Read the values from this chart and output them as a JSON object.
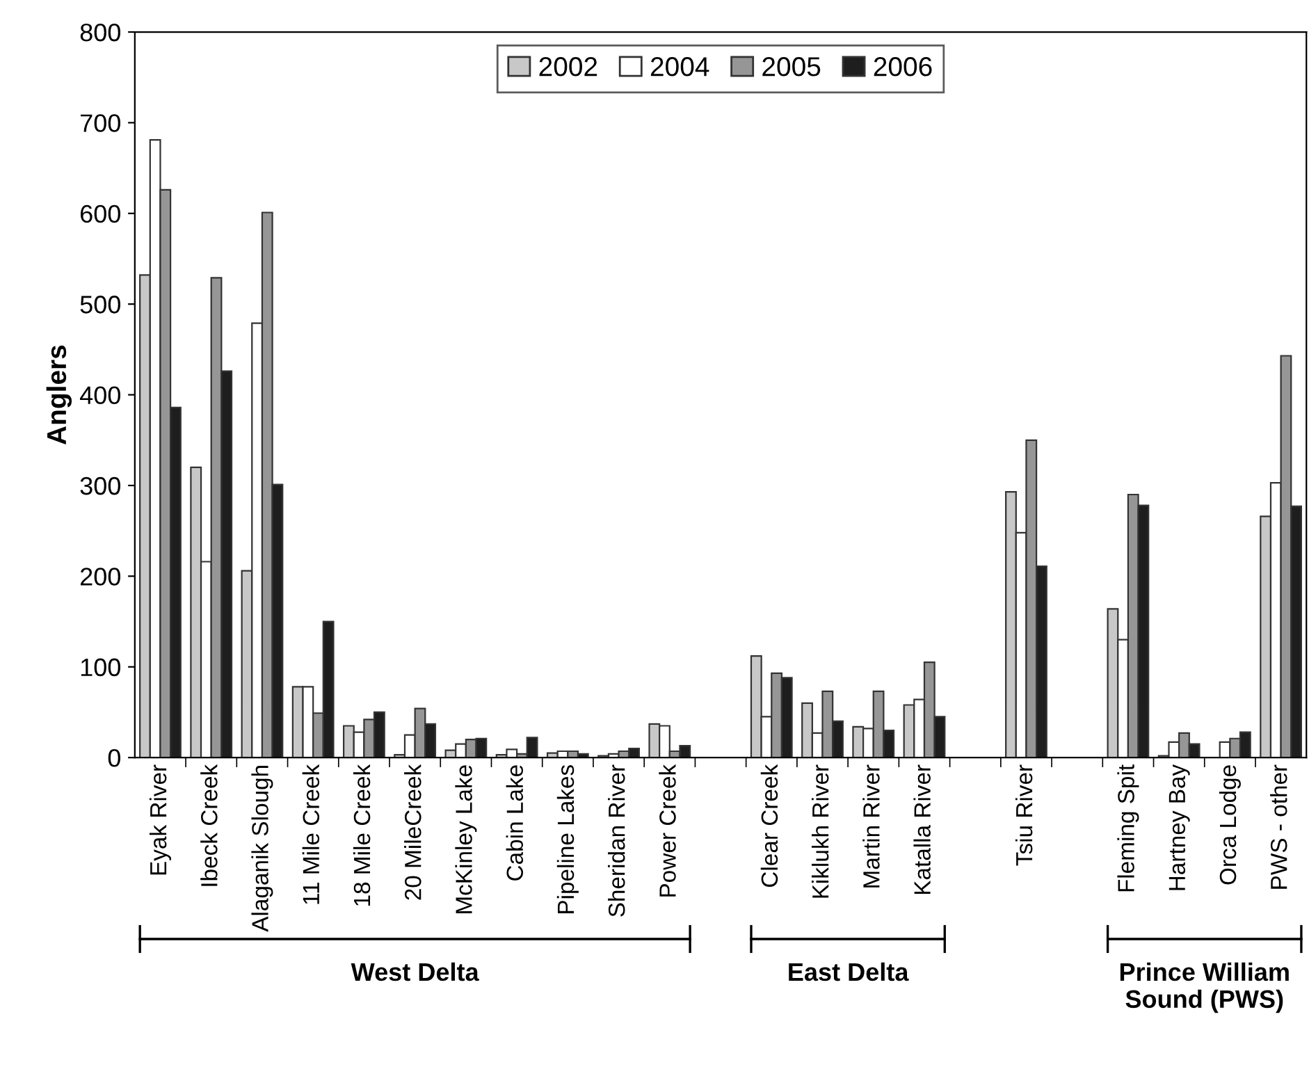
{
  "chart_data": {
    "type": "bar",
    "ylabel": "Anglers",
    "categories": [
      "Eyak River",
      "Ibeck Creek",
      "Alaganik Slough",
      "11 Mile Creek",
      "18 Mile Creek",
      "20 MileCreek",
      "McKinley Lake",
      "Cabin Lake",
      "Pipeline Lakes",
      "Sheridan River",
      "Power Creek",
      null,
      "Clear Creek",
      "Kiklukh River",
      "Martin River",
      "Katalla River",
      null,
      "Tsiu River",
      null,
      "Fleming Spit",
      "Hartney Bay",
      "Orca Lodge",
      "PWS - other"
    ],
    "series": [
      {
        "name": "2002",
        "color": "#c8c8c8",
        "values": [
          532,
          320,
          206,
          78,
          35,
          3,
          8,
          3,
          5,
          2,
          37,
          null,
          112,
          60,
          34,
          58,
          null,
          293,
          null,
          164,
          2,
          null,
          266
        ]
      },
      {
        "name": "2004",
        "color": "#ffffff",
        "values": [
          681,
          216,
          479,
          78,
          28,
          25,
          15,
          9,
          7,
          4,
          35,
          null,
          45,
          27,
          32,
          64,
          null,
          248,
          null,
          130,
          17,
          17,
          303
        ]
      },
      {
        "name": "2005",
        "color": "#969696",
        "values": [
          626,
          529,
          601,
          49,
          42,
          54,
          20,
          4,
          7,
          7,
          7,
          null,
          93,
          73,
          73,
          105,
          null,
          350,
          null,
          290,
          27,
          21,
          443
        ]
      },
      {
        "name": "2006",
        "color": "#1e1e1e",
        "values": [
          386,
          426,
          301,
          150,
          50,
          37,
          21,
          22,
          4,
          10,
          13,
          null,
          88,
          40,
          30,
          45,
          null,
          211,
          null,
          278,
          15,
          28,
          277
        ]
      }
    ],
    "ylim": [
      0,
      800
    ],
    "yticks": [
      0,
      100,
      200,
      300,
      400,
      500,
      600,
      700,
      800
    ],
    "legend": "top",
    "grid": false,
    "annotations": [
      "West Delta",
      "East Delta",
      "Prince William\nSound (PWS)"
    ]
  }
}
